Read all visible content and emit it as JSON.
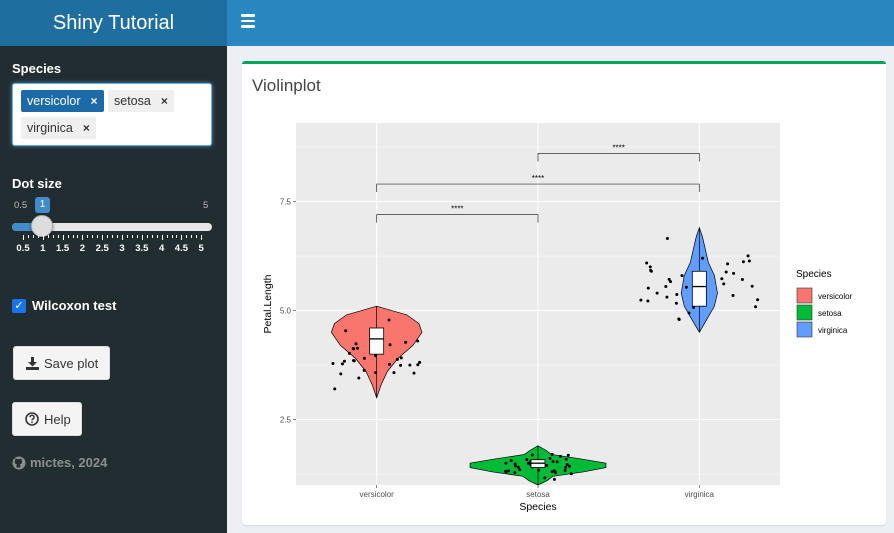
{
  "app": {
    "title": "Shiny Tutorial"
  },
  "sidebar": {
    "species_label": "Species",
    "species_tags": [
      "versicolor",
      "setosa",
      "virginica"
    ],
    "tag_remove": "×",
    "dot_size_label": "Dot size",
    "slider": {
      "min_label": "0.5",
      "max_label": "5",
      "value_label": "1",
      "value": 1,
      "ticks": [
        "0.5",
        "1",
        "1.5",
        "2",
        "2.5",
        "3",
        "3.5",
        "4",
        "4.5",
        "5"
      ]
    },
    "wilcoxon_label": "Wilcoxon test",
    "wilcoxon_checked": true,
    "save_label": "Save plot",
    "help_label": "Help",
    "footer_text": "mictes, 2024"
  },
  "box": {
    "title": "Violinplot"
  },
  "chart_data": {
    "type": "violin",
    "xlabel": "Species",
    "ylabel": "Petal.Length",
    "categories": [
      "versicolor",
      "setosa",
      "virginica"
    ],
    "yticks": [
      "2.5",
      "5.0",
      "7.5"
    ],
    "ylim": [
      1.0,
      9.3
    ],
    "legend": {
      "title": "Species",
      "position": "right",
      "items": [
        "versicolor",
        "setosa",
        "virginica"
      ]
    },
    "colors": {
      "versicolor": "#f8766d",
      "setosa": "#00ba38",
      "virginica": "#619cff"
    },
    "boxes": [
      {
        "name": "versicolor",
        "q1": 4.0,
        "median": 4.35,
        "q3": 4.6,
        "min": 3.0,
        "max": 5.1
      },
      {
        "name": "setosa",
        "q1": 1.4,
        "median": 1.5,
        "q3": 1.58,
        "min": 1.0,
        "max": 1.9
      },
      {
        "name": "virginica",
        "q1": 5.1,
        "median": 5.55,
        "q3": 5.9,
        "min": 4.5,
        "max": 6.9
      }
    ],
    "comparisons": [
      {
        "from": "versicolor",
        "to": "setosa",
        "label": "****",
        "y": 7.2
      },
      {
        "from": "versicolor",
        "to": "virginica",
        "label": "****",
        "y": 7.9
      },
      {
        "from": "setosa",
        "to": "virginica",
        "label": "****",
        "y": 8.6
      }
    ]
  }
}
